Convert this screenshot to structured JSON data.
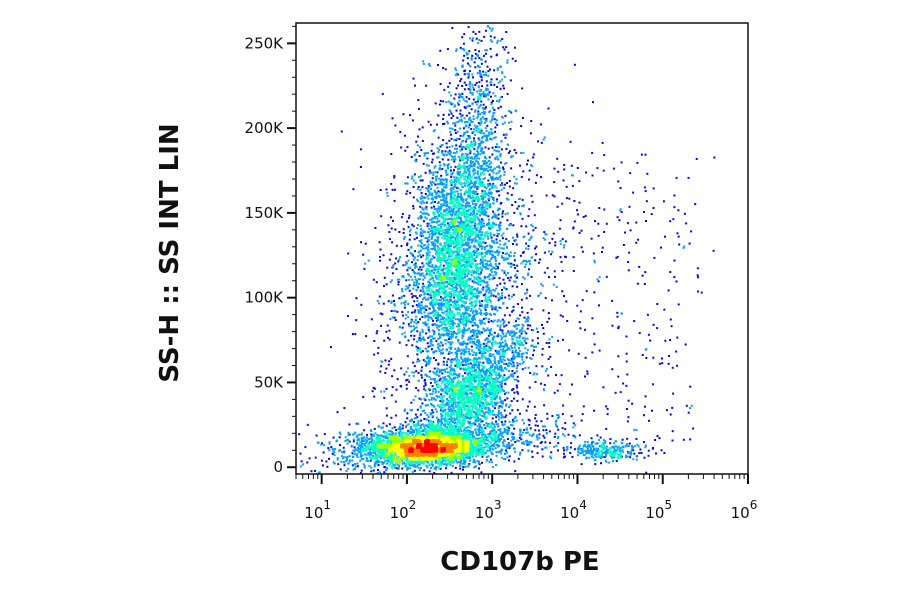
{
  "chart_data": {
    "type": "scatter",
    "subtype": "flow-cytometry-density-dot-plot",
    "xlabel": "CD107b PE",
    "ylabel": "SS-H :: SS INT LIN",
    "x_scale": "log",
    "y_scale": "linear",
    "xlim": [
      5,
      1000000
    ],
    "ylim": [
      -4000,
      262000
    ],
    "x_ticks": [
      {
        "value": 10,
        "base": "10",
        "exp": "1"
      },
      {
        "value": 100,
        "base": "10",
        "exp": "2"
      },
      {
        "value": 1000,
        "base": "10",
        "exp": "3"
      },
      {
        "value": 10000,
        "base": "10",
        "exp": "4"
      },
      {
        "value": 100000,
        "base": "10",
        "exp": "5"
      },
      {
        "value": 1000000,
        "base": "10",
        "exp": "6"
      }
    ],
    "y_ticks": [
      {
        "value": 0,
        "label": "0"
      },
      {
        "value": 50000,
        "label": "50K"
      },
      {
        "value": 100000,
        "label": "100K"
      },
      {
        "value": 150000,
        "label": "150K"
      },
      {
        "value": 200000,
        "label": "200K"
      },
      {
        "value": 250000,
        "label": "250K"
      }
    ],
    "populations": [
      {
        "name_hint": "low side scatter cluster",
        "center_x": 160,
        "center_y": 12000,
        "relative_density": 1.0
      },
      {
        "name_hint": "main granular cluster",
        "center_x": 350,
        "center_y": 125000,
        "relative_density": 0.6
      },
      {
        "name_hint": "mid cluster",
        "center_x": 550,
        "center_y": 45000,
        "relative_density": 0.4
      },
      {
        "name_hint": "CD107b high cluster",
        "center_x": 20000,
        "center_y": 11000,
        "relative_density": 0.15
      }
    ],
    "grid": false,
    "colormap": [
      "#0000ff",
      "#00a0ff",
      "#00ffc0",
      "#a0ff00",
      "#ffff00",
      "#ff8000",
      "#ff0000"
    ]
  }
}
